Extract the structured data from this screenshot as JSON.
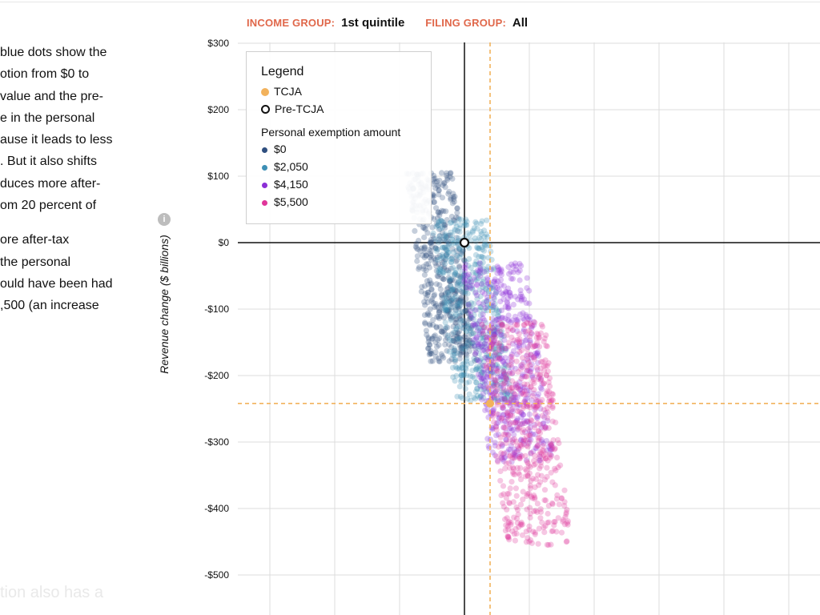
{
  "filters": {
    "income_label": "INCOME GROUP:",
    "income_value": "1st quintile",
    "filing_label": "FILING GROUP:",
    "filing_value": "All"
  },
  "narrative": {
    "paragraphs": [
      [
        "blue dots show the",
        "otion from $0 to",
        "value and the pre-",
        "e in the personal",
        "ause it leads to less",
        ". But it also shifts",
        "duces more after-",
        "om 20 percent of"
      ],
      [
        "ore after-tax",
        " the personal",
        "ould have been had",
        ",500 (an increase"
      ]
    ],
    "faded_line": "tion also has a"
  },
  "info_icon_glyph": "i",
  "chart_data": {
    "type": "scatter",
    "ylabel": "Revenue change ($ billions)",
    "ylim": [
      -550,
      300
    ],
    "y_ticks": [
      300,
      200,
      100,
      0,
      -100,
      -200,
      -300,
      -400,
      -500
    ],
    "y_tick_labels": [
      "$300",
      "$200",
      "$100",
      "$0",
      "-$100",
      "-$200",
      "-$300",
      "-$400",
      "-$500"
    ],
    "x_gridlines": 9,
    "grid": true,
    "legend": {
      "title": "Legend",
      "placement": "top-left",
      "markers": [
        {
          "name": "TCJA",
          "style": "filled",
          "color": "#f2b25c"
        },
        {
          "name": "Pre-TCJA",
          "style": "ring",
          "color": "#111111"
        }
      ],
      "subtitle": "Personal exemption amount",
      "series": [
        {
          "name": "$0",
          "color": "#2f4f7f"
        },
        {
          "name": "$2,050",
          "color": "#3d8fb5"
        },
        {
          "name": "$4,150",
          "color": "#8b2fd6"
        },
        {
          "name": "$5,500",
          "color": "#e0359a"
        }
      ]
    },
    "highlight_points": [
      {
        "name": "TCJA",
        "y": -242
      },
      {
        "name": "Pre-TCJA",
        "y": 0
      }
    ]
  }
}
